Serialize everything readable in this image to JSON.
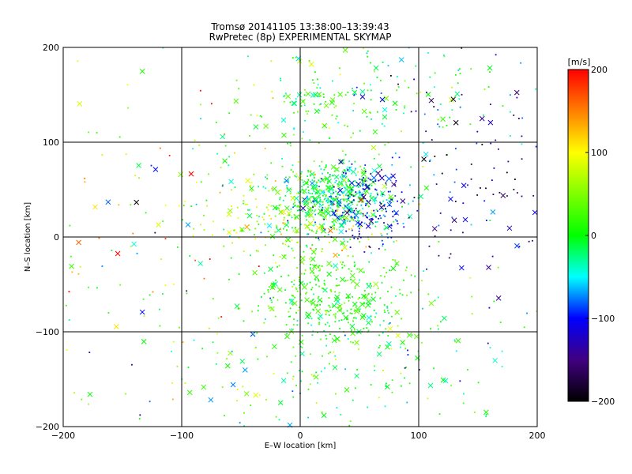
{
  "chart_data": {
    "type": "scatter",
    "title": "Tromsø 20141105 13:38:00–13:39:43",
    "subtitle": "RwPretec (8p) EXPERIMENTAL SKYMAP",
    "xlabel": "E–W location [km]",
    "ylabel": "N–S location [km]",
    "xlim": [
      -200,
      200
    ],
    "ylim": [
      -200,
      200
    ],
    "xticks": [
      -200,
      -100,
      0,
      100,
      200
    ],
    "yticks": [
      -200,
      -100,
      0,
      100,
      200
    ],
    "grid": true,
    "colorbar": {
      "label": "[m/s]",
      "min": -200,
      "max": 200,
      "ticks": [
        200,
        100,
        0,
        -100,
        -200
      ]
    },
    "marker_styles": [
      "small dot",
      "cross"
    ],
    "point_clusters": [
      {
        "center": [
          25,
          45
        ],
        "spread": [
          22,
          18
        ],
        "n": 420,
        "velocity_mean": -10,
        "velocity_sd": 30
      },
      {
        "center": [
          55,
          35
        ],
        "spread": [
          20,
          22
        ],
        "n": 260,
        "velocity_mean": -90,
        "velocity_sd": 35
      },
      {
        "center": [
          30,
          -65
        ],
        "spread": [
          35,
          25
        ],
        "n": 380,
        "velocity_mean": 15,
        "velocity_sd": 25
      },
      {
        "center": [
          -10,
          20
        ],
        "spread": [
          40,
          25
        ],
        "n": 260,
        "velocity_mean": 60,
        "velocity_sd": 50
      },
      {
        "center": [
          30,
          140
        ],
        "spread": [
          45,
          30
        ],
        "n": 160,
        "velocity_mean": 10,
        "velocity_sd": 40
      },
      {
        "center": [
          150,
          50
        ],
        "spread": [
          40,
          45
        ],
        "n": 90,
        "velocity_mean": -140,
        "velocity_sd": 50
      },
      {
        "center": [
          120,
          150
        ],
        "spread": [
          50,
          35
        ],
        "n": 90,
        "velocity_mean": -40,
        "velocity_sd": 70
      },
      {
        "center": [
          0,
          -150
        ],
        "spread": [
          80,
          35
        ],
        "n": 130,
        "velocity_mean": 10,
        "velocity_sd": 50
      },
      {
        "center": [
          -130,
          0
        ],
        "spread": [
          60,
          110
        ],
        "n": 150,
        "velocity_mean": 40,
        "velocity_sd": 90
      },
      {
        "center": [
          90,
          -120
        ],
        "spread": [
          50,
          40
        ],
        "n": 70,
        "velocity_mean": -20,
        "velocity_sd": 60
      }
    ]
  }
}
